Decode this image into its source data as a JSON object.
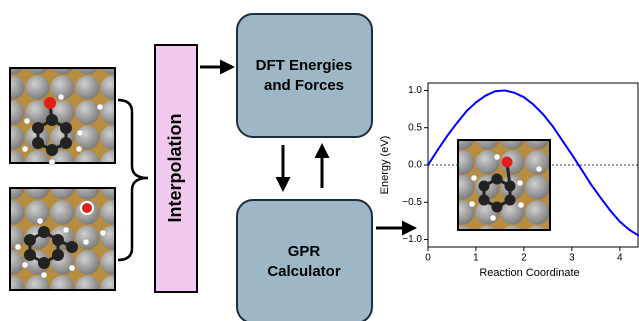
{
  "nodes": [
    {
      "label": "Interpolation"
    },
    {
      "lines": [
        "DFT Energies",
        "and Forces"
      ]
    },
    {
      "lines": [
        "GPR",
        "Calculator"
      ]
    }
  ],
  "chart_data": {
    "type": "line",
    "xlabel": "Reaction Coordinate",
    "ylabel": "Energy (eV)",
    "x": [
      0,
      0.2,
      0.4,
      0.6,
      0.8,
      1.0,
      1.2,
      1.4,
      1.6,
      1.8,
      2.0,
      2.2,
      2.4,
      2.6,
      2.8,
      3.0,
      3.2,
      3.4,
      3.6,
      3.8,
      4.0,
      4.2,
      4.4
    ],
    "series": [
      {
        "color": "#0000ff",
        "values": [
          0,
          0.2,
          0.39,
          0.56,
          0.72,
          0.84,
          0.93,
          0.99,
          1.0,
          0.97,
          0.91,
          0.81,
          0.68,
          0.52,
          0.33,
          0.14,
          -0.06,
          -0.26,
          -0.44,
          -0.61,
          -0.76,
          -0.87,
          -0.95
        ]
      }
    ],
    "reference_line": 0,
    "xlim": [
      0,
      4.4
    ],
    "ylim": [
      -1.1,
      1.1
    ],
    "xticks": [
      0,
      1,
      2,
      3,
      4
    ],
    "yticks": [
      {
        "value": 1.0,
        "label": "1.0"
      },
      {
        "value": 0.5,
        "label": "0.5"
      },
      {
        "value": 0,
        "label": "0.0"
      },
      {
        "value": -0.5,
        "label": "−0.5"
      },
      {
        "value": -1.0,
        "label": "−1.0"
      }
    ]
  }
}
